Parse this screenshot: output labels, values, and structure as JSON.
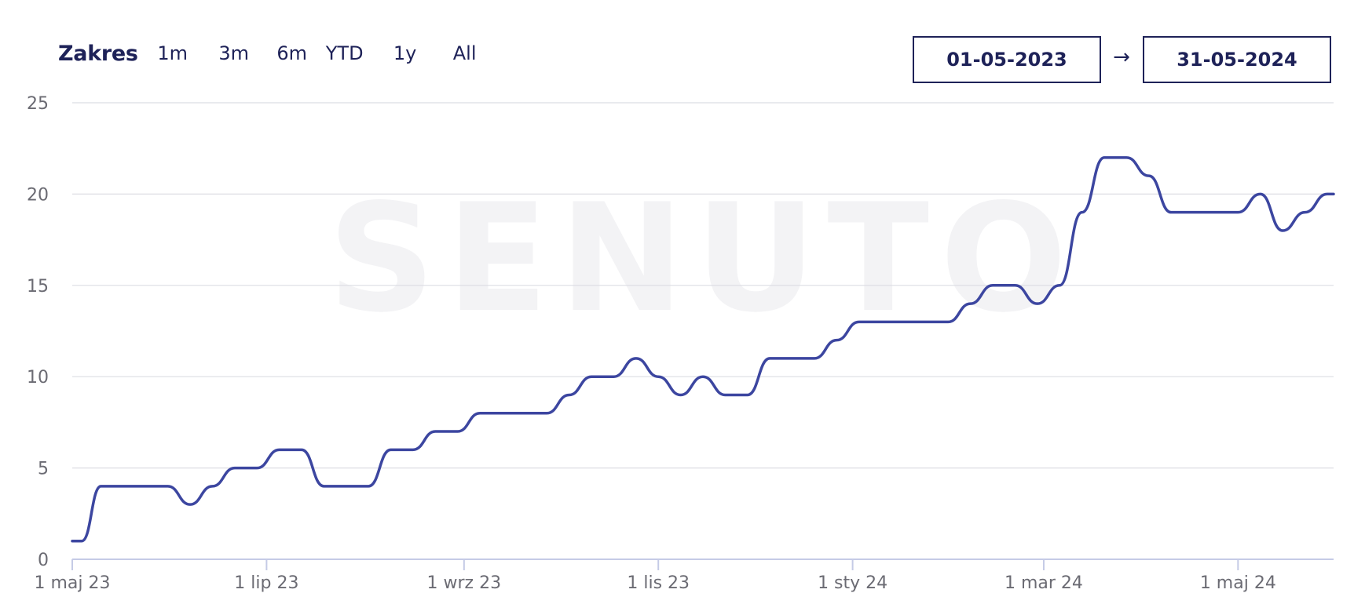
{
  "header": {
    "range_label": "Zakres",
    "range_options": [
      "1m",
      "3m",
      "6m",
      "YTD",
      "1y",
      "All"
    ],
    "date_from": "01-05-2023",
    "date_arrow": "→",
    "date_to": "31-05-2024"
  },
  "watermark": "SENUTO",
  "colors": {
    "line": "#3c46a0",
    "text_dark": "#1e2258",
    "grid": "#dcdde3"
  },
  "chart_data": {
    "type": "line",
    "title": "",
    "xlabel": "",
    "ylabel": "",
    "ylim": [
      0,
      25
    ],
    "yticks": [
      0,
      5,
      10,
      15,
      20,
      25
    ],
    "x_tick_labels": [
      "1 maj 23",
      "1 lip 23",
      "1 wrz 23",
      "1 lis 23",
      "1 sty 24",
      "1 mar 24",
      "1 maj 24"
    ],
    "x_tick_dates": [
      "2023-05-01",
      "2023-07-01",
      "2023-09-01",
      "2023-11-01",
      "2024-01-01",
      "2024-03-01",
      "2024-05-01"
    ],
    "grid": true,
    "legend": "none",
    "series": [
      {
        "points": [
          [
            "2023-05-01",
            1
          ],
          [
            "2023-05-04",
            1
          ],
          [
            "2023-05-10",
            4
          ],
          [
            "2023-05-17",
            4
          ],
          [
            "2023-05-24",
            4
          ],
          [
            "2023-05-31",
            4
          ],
          [
            "2023-06-07",
            3
          ],
          [
            "2023-06-14",
            4
          ],
          [
            "2023-06-21",
            5
          ],
          [
            "2023-06-28",
            5
          ],
          [
            "2023-07-05",
            6
          ],
          [
            "2023-07-12",
            6
          ],
          [
            "2023-07-19",
            4
          ],
          [
            "2023-07-26",
            4
          ],
          [
            "2023-08-02",
            4
          ],
          [
            "2023-08-09",
            6
          ],
          [
            "2023-08-16",
            6
          ],
          [
            "2023-08-23",
            7
          ],
          [
            "2023-08-30",
            7
          ],
          [
            "2023-09-06",
            8
          ],
          [
            "2023-09-13",
            8
          ],
          [
            "2023-09-20",
            8
          ],
          [
            "2023-09-27",
            8
          ],
          [
            "2023-10-04",
            9
          ],
          [
            "2023-10-11",
            10
          ],
          [
            "2023-10-18",
            10
          ],
          [
            "2023-10-25",
            11
          ],
          [
            "2023-11-01",
            10
          ],
          [
            "2023-11-08",
            9
          ],
          [
            "2023-11-15",
            10
          ],
          [
            "2023-11-22",
            9
          ],
          [
            "2023-11-29",
            9
          ],
          [
            "2023-12-06",
            11
          ],
          [
            "2023-12-13",
            11
          ],
          [
            "2023-12-20",
            11
          ],
          [
            "2023-12-27",
            12
          ],
          [
            "2024-01-03",
            13
          ],
          [
            "2024-01-10",
            13
          ],
          [
            "2024-01-17",
            13
          ],
          [
            "2024-01-24",
            13
          ],
          [
            "2024-01-31",
            13
          ],
          [
            "2024-02-07",
            14
          ],
          [
            "2024-02-14",
            15
          ],
          [
            "2024-02-21",
            15
          ],
          [
            "2024-02-28",
            14
          ],
          [
            "2024-03-06",
            15
          ],
          [
            "2024-03-13",
            19
          ],
          [
            "2024-03-20",
            22
          ],
          [
            "2024-03-27",
            22
          ],
          [
            "2024-04-03",
            21
          ],
          [
            "2024-04-10",
            19
          ],
          [
            "2024-04-17",
            19
          ],
          [
            "2024-04-24",
            19
          ],
          [
            "2024-05-01",
            19
          ],
          [
            "2024-05-08",
            20
          ],
          [
            "2024-05-15",
            18
          ],
          [
            "2024-05-22",
            19
          ],
          [
            "2024-05-29",
            20
          ],
          [
            "2024-05-31",
            20
          ]
        ]
      }
    ]
  }
}
